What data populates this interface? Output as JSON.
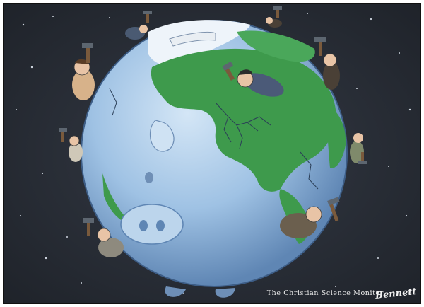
{
  "cartoon": {
    "publication_credit": "The Christian Science Monitor",
    "artist_signature": "Bennett",
    "colors": {
      "space": "#2a2f38",
      "ocean": "#a9c8e6",
      "land": "#3e9a4c",
      "ice": "#eef4fa",
      "frame": "#111111"
    }
  }
}
